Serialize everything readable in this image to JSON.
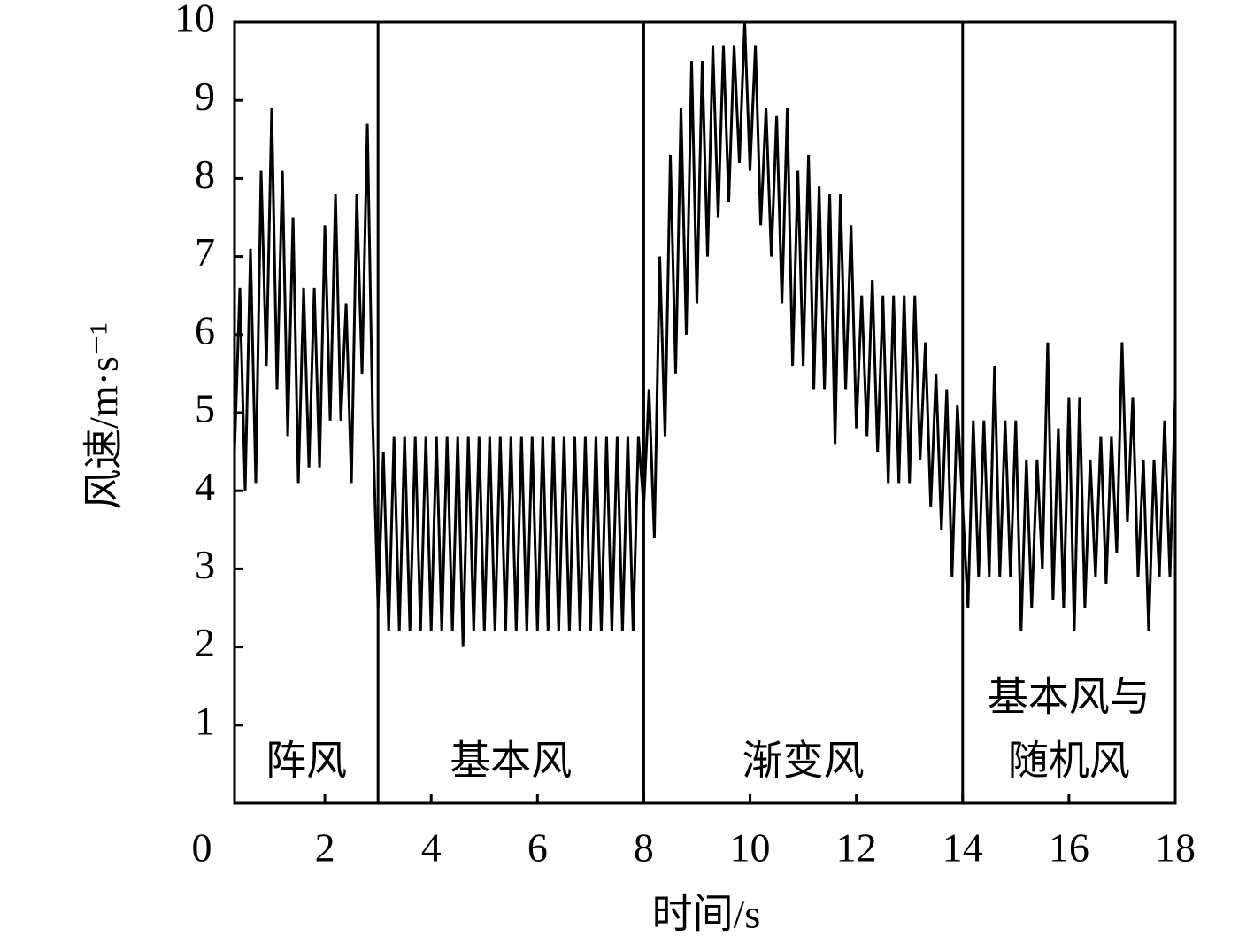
{
  "chart_data": {
    "type": "line",
    "xlabel": "时间/s",
    "ylabel": "风速/m·s⁻¹",
    "xlim": [
      0.3,
      18.0
    ],
    "ylim": [
      0,
      10
    ],
    "xticks": [
      0,
      2,
      4,
      6,
      8,
      10,
      12,
      14,
      16,
      18
    ],
    "yticks": [
      1,
      2,
      3,
      4,
      5,
      6,
      7,
      8,
      9,
      10
    ],
    "region_boundaries": [
      3,
      8,
      14
    ],
    "annotations": [
      {
        "lines": [
          "阵风"
        ]
      },
      {
        "lines": [
          "基本风"
        ]
      },
      {
        "lines": [
          "渐变风"
        ]
      },
      {
        "lines": [
          "基本风与",
          "随机风"
        ]
      }
    ],
    "color": "#000000",
    "x": [
      0.3,
      0.4,
      0.5,
      0.6,
      0.7,
      0.8,
      0.9,
      1.0,
      1.1,
      1.2,
      1.3,
      1.4,
      1.5,
      1.6,
      1.7,
      1.8,
      1.9,
      2.0,
      2.1,
      2.2,
      2.3,
      2.4,
      2.5,
      2.6,
      2.7,
      2.8,
      2.9,
      3.0,
      3.1,
      3.2,
      3.3,
      3.4,
      3.5,
      3.6,
      3.7,
      3.8,
      3.9,
      4.0,
      4.1,
      4.2,
      4.3,
      4.4,
      4.5,
      4.6,
      4.7,
      4.8,
      4.9,
      5.0,
      5.1,
      5.2,
      5.3,
      5.4,
      5.5,
      5.6,
      5.7,
      5.8,
      5.9,
      6.0,
      6.1,
      6.2,
      6.3,
      6.4,
      6.5,
      6.6,
      6.7,
      6.8,
      6.9,
      7.0,
      7.1,
      7.2,
      7.3,
      7.4,
      7.5,
      7.6,
      7.7,
      7.8,
      7.9,
      8.0,
      8.1,
      8.2,
      8.3,
      8.4,
      8.5,
      8.6,
      8.7,
      8.8,
      8.9,
      9.0,
      9.1,
      9.2,
      9.3,
      9.4,
      9.5,
      9.6,
      9.7,
      9.8,
      9.9,
      10.0,
      10.1,
      10.2,
      10.3,
      10.4,
      10.5,
      10.6,
      10.7,
      10.8,
      10.9,
      11.0,
      11.1,
      11.2,
      11.3,
      11.4,
      11.5,
      11.6,
      11.7,
      11.8,
      11.9,
      12.0,
      12.1,
      12.2,
      12.3,
      12.4,
      12.5,
      12.6,
      12.7,
      12.8,
      12.9,
      13.0,
      13.1,
      13.2,
      13.3,
      13.4,
      13.5,
      13.6,
      13.7,
      13.8,
      13.9,
      14.0,
      14.1,
      14.2,
      14.3,
      14.4,
      14.5,
      14.6,
      14.7,
      14.8,
      14.9,
      15.0,
      15.1,
      15.2,
      15.3,
      15.4,
      15.5,
      15.6,
      15.7,
      15.8,
      15.9,
      16.0,
      16.1,
      16.2,
      16.3,
      16.4,
      16.5,
      16.6,
      16.7,
      16.8,
      16.9,
      17.0,
      17.1,
      17.2,
      17.3,
      17.4,
      17.5,
      17.6,
      17.7,
      17.8,
      17.9,
      18.0
    ],
    "values": [
      4.5,
      6.6,
      4.0,
      7.1,
      4.1,
      8.1,
      5.6,
      8.9,
      5.3,
      8.1,
      4.7,
      7.5,
      4.1,
      6.6,
      4.3,
      6.6,
      4.3,
      7.4,
      4.9,
      7.8,
      4.9,
      6.4,
      4.1,
      7.8,
      5.5,
      8.7,
      4.9,
      2.5,
      4.5,
      2.2,
      4.7,
      2.2,
      4.7,
      2.2,
      4.7,
      2.2,
      4.7,
      2.2,
      4.7,
      2.2,
      4.7,
      2.2,
      4.7,
      2.0,
      4.7,
      2.2,
      4.7,
      2.2,
      4.7,
      2.2,
      4.7,
      2.2,
      4.7,
      2.2,
      4.7,
      2.2,
      4.7,
      2.2,
      4.7,
      2.2,
      4.7,
      2.2,
      4.7,
      2.2,
      4.7,
      2.2,
      4.7,
      2.2,
      4.7,
      2.2,
      4.7,
      2.2,
      4.7,
      2.2,
      4.7,
      2.2,
      4.7,
      3.8,
      5.3,
      3.4,
      7.0,
      4.7,
      8.3,
      5.5,
      8.9,
      6.0,
      9.5,
      6.4,
      9.5,
      7.0,
      9.7,
      7.5,
      9.7,
      7.7,
      9.7,
      8.2,
      10.0,
      8.1,
      9.7,
      7.4,
      8.9,
      7.0,
      8.8,
      6.4,
      8.9,
      5.6,
      8.1,
      5.6,
      8.3,
      5.3,
      7.9,
      5.3,
      7.8,
      4.6,
      7.8,
      5.3,
      7.4,
      4.8,
      6.5,
      4.7,
      6.7,
      4.5,
      6.5,
      4.1,
      6.5,
      4.1,
      6.5,
      4.1,
      6.5,
      4.4,
      5.9,
      3.8,
      5.5,
      3.5,
      5.3,
      2.9,
      5.1,
      3.8,
      2.5,
      4.9,
      2.9,
      4.9,
      2.9,
      5.6,
      2.9,
      4.9,
      2.9,
      4.9,
      2.2,
      4.4,
      2.5,
      4.4,
      3.0,
      5.9,
      2.6,
      4.8,
      2.5,
      5.2,
      2.2,
      5.2,
      2.5,
      4.4,
      2.9,
      4.7,
      2.8,
      4.7,
      3.2,
      5.9,
      3.6,
      5.2,
      2.9,
      4.4,
      2.2,
      4.4,
      2.9,
      4.9,
      2.9,
      5.2
    ]
  }
}
